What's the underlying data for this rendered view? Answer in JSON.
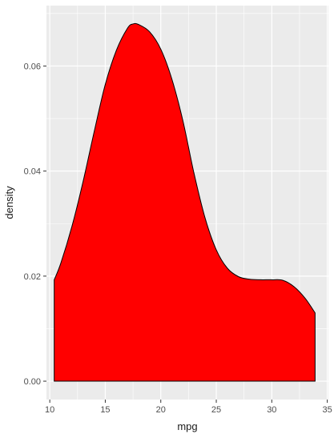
{
  "chart_data": {
    "type": "area",
    "xlabel": "mpg",
    "ylabel": "density",
    "xlim": [
      9.7,
      35.1
    ],
    "ylim": [
      -0.0035,
      0.0715
    ],
    "x_ticks": [
      10,
      15,
      20,
      25,
      30,
      35
    ],
    "x_tick_labels": [
      "10",
      "15",
      "20",
      "25",
      "30",
      "35"
    ],
    "y_ticks": [
      0.0,
      0.02,
      0.04,
      0.06
    ],
    "y_tick_labels": [
      "0.00",
      "0.02",
      "0.04",
      "0.06"
    ],
    "x_minor_ticks": [
      12.5,
      17.5,
      22.5,
      27.5,
      32.5
    ],
    "y_minor_ticks": [
      0.01,
      0.03,
      0.05,
      0.07
    ],
    "grid": true,
    "series": [
      {
        "x": [
          10.4,
          11.0,
          12.0,
          13.0,
          14.0,
          15.0,
          16.0,
          17.0,
          17.5,
          18.0,
          19.0,
          20.0,
          21.0,
          22.0,
          23.0,
          24.0,
          25.0,
          26.0,
          27.0,
          28.0,
          29.0,
          30.0,
          31.0,
          32.0,
          33.0,
          33.9
        ],
        "y": [
          0.0193,
          0.0225,
          0.0295,
          0.038,
          0.0475,
          0.0565,
          0.063,
          0.0672,
          0.068,
          0.0679,
          0.0665,
          0.0632,
          0.0575,
          0.0495,
          0.0395,
          0.031,
          0.025,
          0.0215,
          0.0199,
          0.0194,
          0.0193,
          0.0193,
          0.0192,
          0.018,
          0.0158,
          0.013
        ],
        "fill": "#ff0000",
        "outline": "#000000"
      }
    ],
    "panel_background": "#ebebeb",
    "grid_color": "#ffffff"
  }
}
